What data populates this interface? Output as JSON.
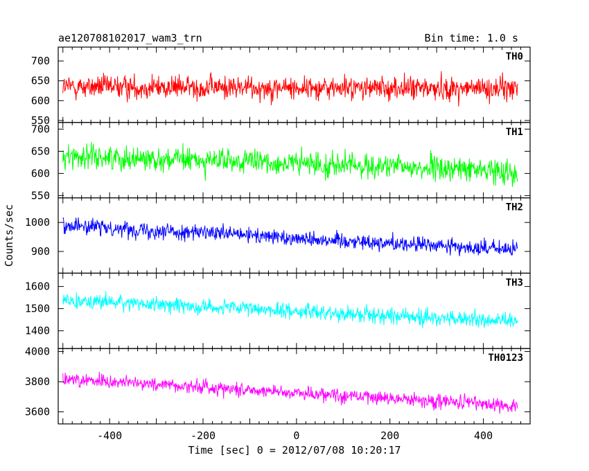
{
  "chart_data": {
    "type": "line",
    "title": "ae120708102017_wam3_trn",
    "bin_time_label": "Bin time: 1.0 s",
    "xlabel": "Time [sec] 0 = 2012/07/08 10:20:17",
    "ylabel": "Counts/sec",
    "xlim": [
      -510,
      500
    ],
    "x_ticks": [
      -400,
      -200,
      0,
      200,
      400
    ],
    "x_range": [
      -500,
      473
    ],
    "panels": [
      {
        "name": "TH0",
        "color": "#ff0000",
        "ylim": [
          545,
          735
        ],
        "y_ticks": [
          550,
          600,
          650,
          700
        ],
        "start_level": 635,
        "end_level": 630,
        "noise_amplitude": 38
      },
      {
        "name": "TH1",
        "color": "#00ff00",
        "ylim": [
          545,
          715
        ],
        "y_ticks": [
          550,
          600,
          650,
          700
        ],
        "start_level": 640,
        "end_level": 605,
        "noise_amplitude": 35
      },
      {
        "name": "TH2",
        "color": "#0000ff",
        "ylim": [
          825,
          1085
        ],
        "y_ticks": [
          900,
          1000
        ],
        "start_level": 990,
        "end_level": 905,
        "noise_amplitude": 35
      },
      {
        "name": "TH3",
        "color": "#00ffff",
        "ylim": [
          1320,
          1660
        ],
        "y_ticks": [
          1400,
          1500,
          1600
        ],
        "start_level": 1540,
        "end_level": 1440,
        "noise_amplitude": 45
      },
      {
        "name": "TH0123",
        "color": "#ff00ff",
        "ylim": [
          3520,
          4020
        ],
        "y_ticks": [
          3600,
          3800,
          4000
        ],
        "start_level": 3820,
        "end_level": 3640,
        "noise_amplitude": 60
      }
    ]
  }
}
